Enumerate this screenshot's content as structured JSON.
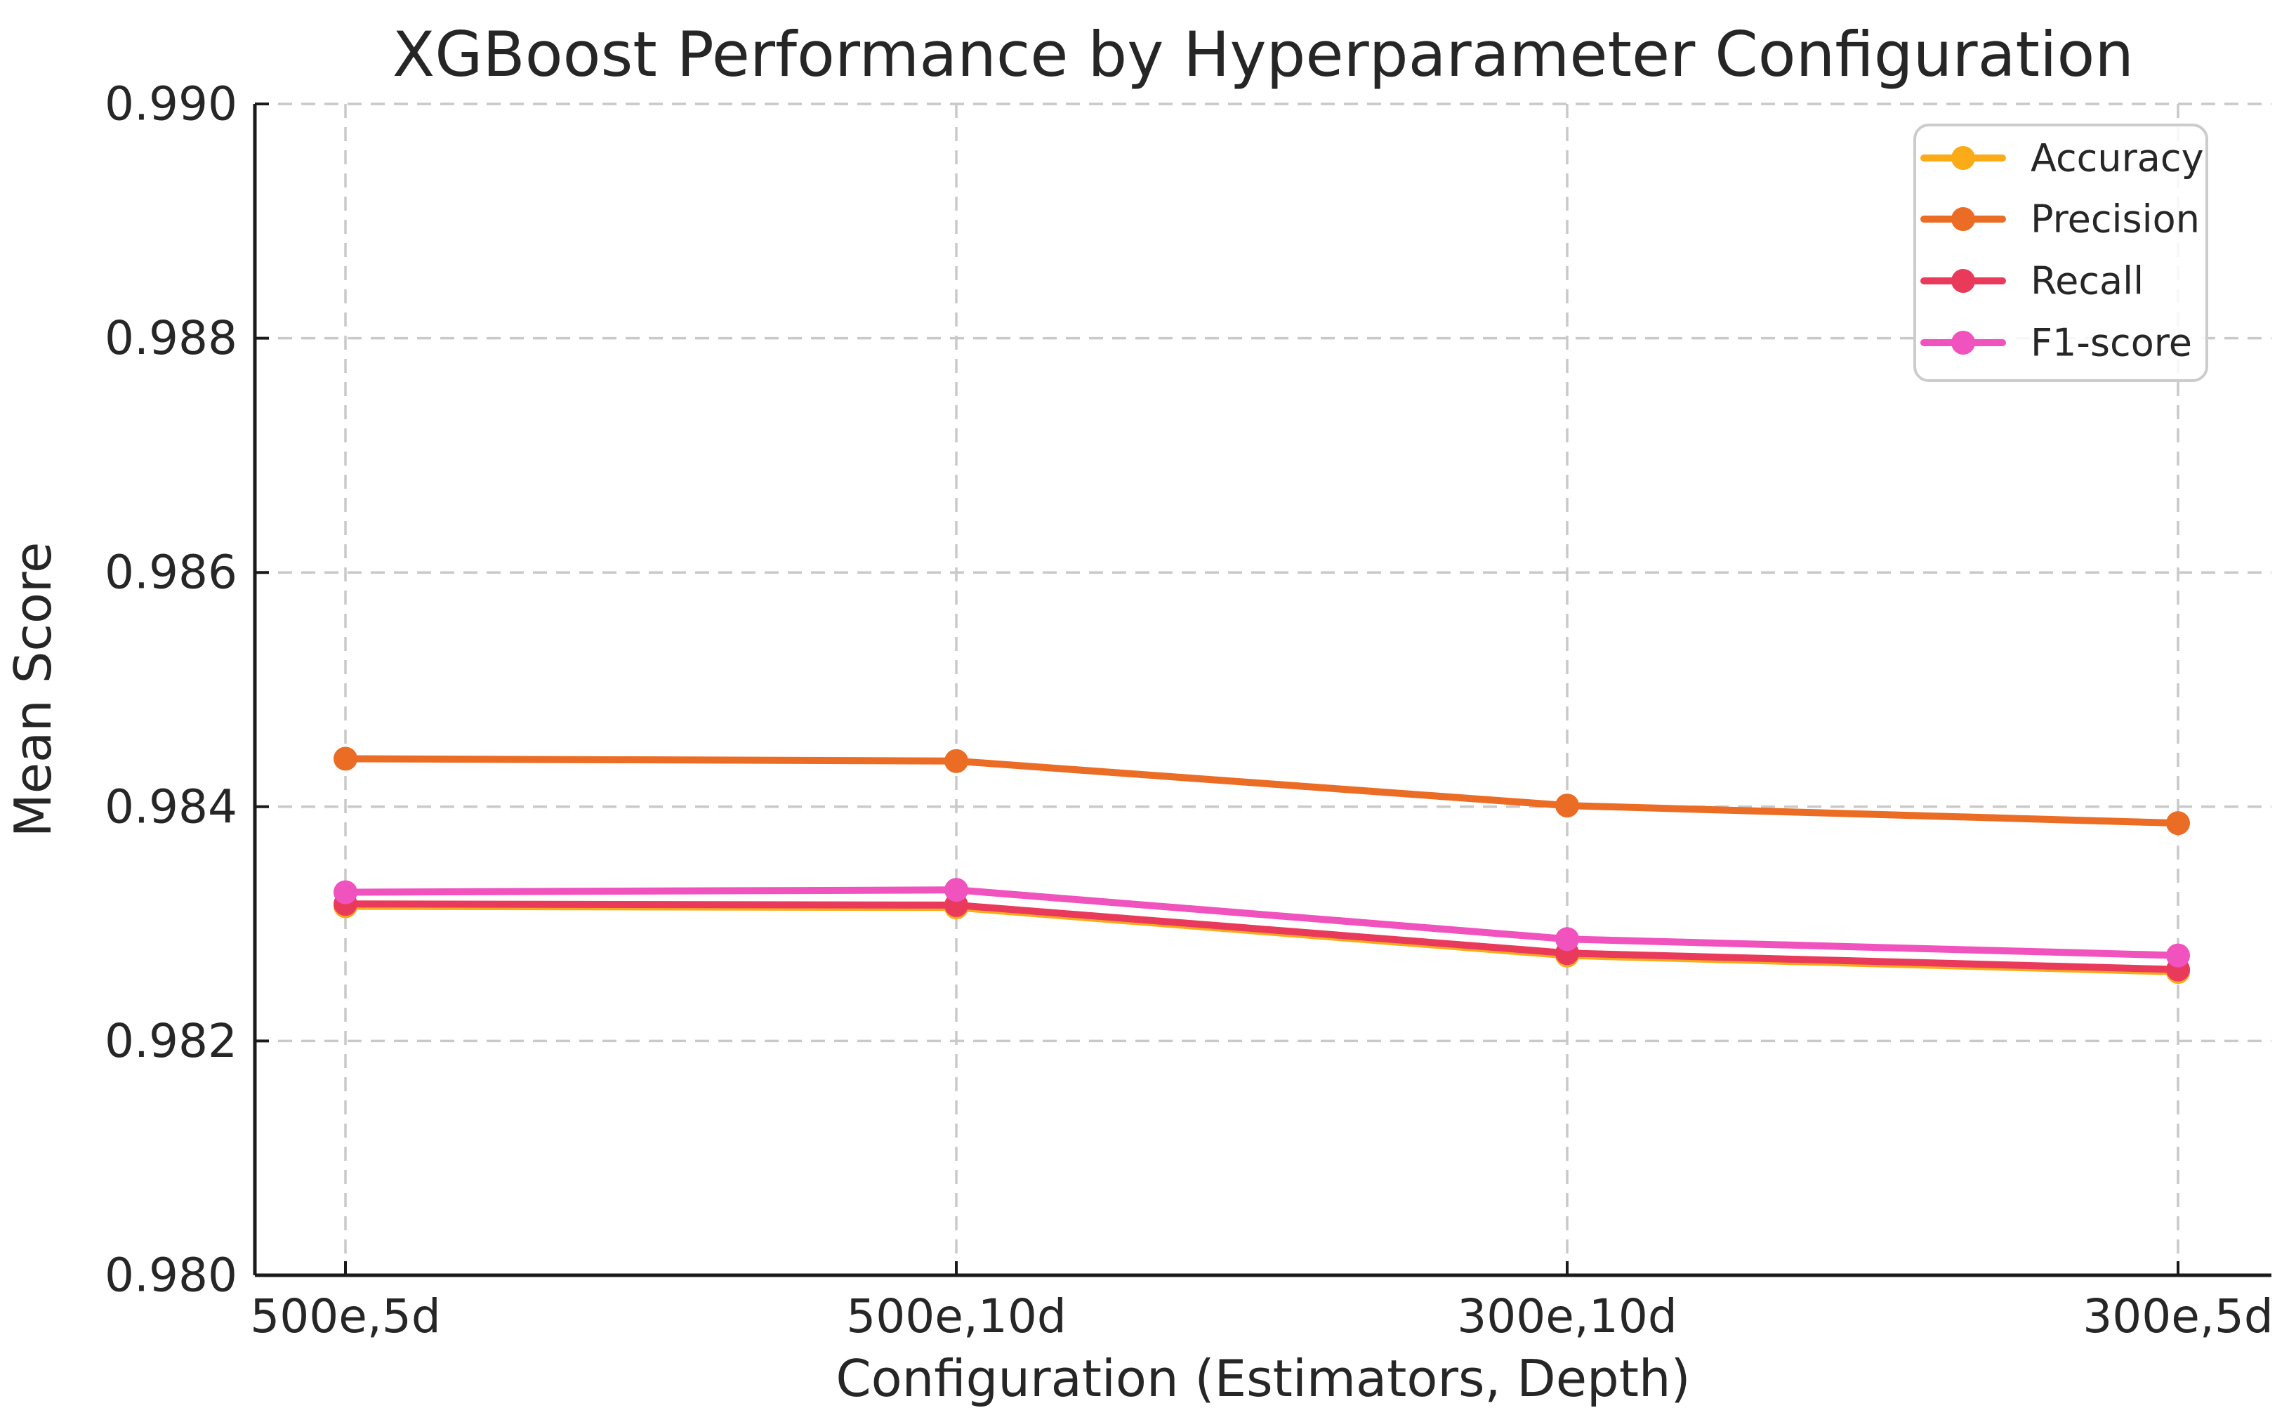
{
  "chart_data": {
    "type": "line",
    "title": "XGBoost Performance by Hyperparameter Configuration",
    "xlabel": "Configuration (Estimators, Depth)",
    "ylabel": "Mean Score",
    "categories": [
      "500e,5d",
      "500e,10d",
      "300e,10d",
      "300e,5d"
    ],
    "ylim": [
      0.98,
      0.99
    ],
    "y_ticks": [
      0.98,
      0.982,
      0.984,
      0.986,
      0.988,
      0.99
    ],
    "y_tick_labels": [
      "0.980",
      "0.982",
      "0.984",
      "0.986",
      "0.988",
      "0.990"
    ],
    "grid": true,
    "legend_position": "upper-right",
    "series": [
      {
        "name": "Accuracy",
        "color": "#FBAB18",
        "values": [
          0.98315,
          0.98314,
          0.98273,
          0.98259
        ]
      },
      {
        "name": "Precision",
        "color": "#EB6C24",
        "values": [
          0.98441,
          0.98439,
          0.98401,
          0.98386
        ]
      },
      {
        "name": "Recall",
        "color": "#E93A5C",
        "values": [
          0.98317,
          0.98316,
          0.98275,
          0.98261
        ]
      },
      {
        "name": "F1-score",
        "color": "#F052BE",
        "values": [
          0.98327,
          0.98329,
          0.98287,
          0.98273
        ]
      }
    ]
  }
}
